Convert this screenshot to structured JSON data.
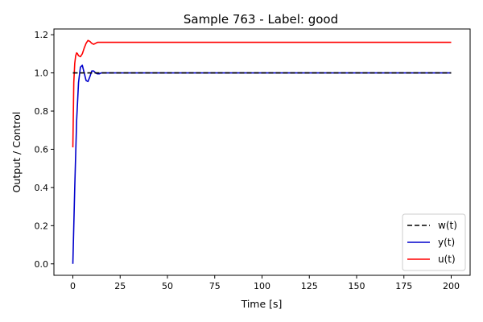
{
  "chart_data": {
    "type": "line",
    "title": "Sample 763 - Label: good",
    "xlabel": "Time [s]",
    "ylabel": "Output / Control",
    "xlim": [
      -10,
      210
    ],
    "ylim": [
      -0.06,
      1.23
    ],
    "xticks": [
      0,
      25,
      50,
      75,
      100,
      125,
      150,
      175,
      200
    ],
    "yticks": [
      0.0,
      0.2,
      0.4,
      0.6,
      0.8,
      1.0,
      1.2
    ],
    "grid": false,
    "legend_position": "lower-right",
    "series": [
      {
        "name": "w(t)",
        "color": "#000000",
        "style": "dashed",
        "x": [
          0,
          200
        ],
        "y": [
          1.0,
          1.0
        ]
      },
      {
        "name": "y(t)",
        "color": "#0000cc",
        "style": "solid",
        "x": [
          0,
          1,
          2,
          3,
          4,
          5,
          6,
          7,
          8,
          9,
          10,
          11,
          12,
          13,
          14,
          15,
          16,
          18,
          20,
          25,
          30,
          40,
          60,
          100,
          150,
          200
        ],
        "y": [
          0.0,
          0.4,
          0.75,
          0.95,
          1.03,
          1.04,
          1.0,
          0.96,
          0.955,
          0.98,
          1.01,
          1.01,
          1.0,
          0.995,
          0.995,
          1.0,
          1.0,
          1.0,
          1.0,
          1.0,
          1.0,
          1.0,
          1.0,
          1.0,
          1.0,
          1.0
        ]
      },
      {
        "name": "u(t)",
        "color": "#ff0000",
        "style": "solid",
        "x": [
          0,
          0.5,
          1,
          1.5,
          2,
          2.5,
          3,
          4,
          5,
          6,
          7,
          8,
          9,
          10,
          11,
          12,
          13,
          14,
          15,
          16,
          18,
          20,
          25,
          30,
          40,
          60,
          100,
          150,
          200
        ],
        "y": [
          0.61,
          0.95,
          1.05,
          1.09,
          1.105,
          1.1,
          1.09,
          1.085,
          1.1,
          1.13,
          1.155,
          1.17,
          1.165,
          1.155,
          1.15,
          1.155,
          1.16,
          1.16,
          1.16,
          1.16,
          1.16,
          1.16,
          1.16,
          1.16,
          1.16,
          1.16,
          1.16,
          1.16,
          1.16
        ]
      }
    ]
  }
}
